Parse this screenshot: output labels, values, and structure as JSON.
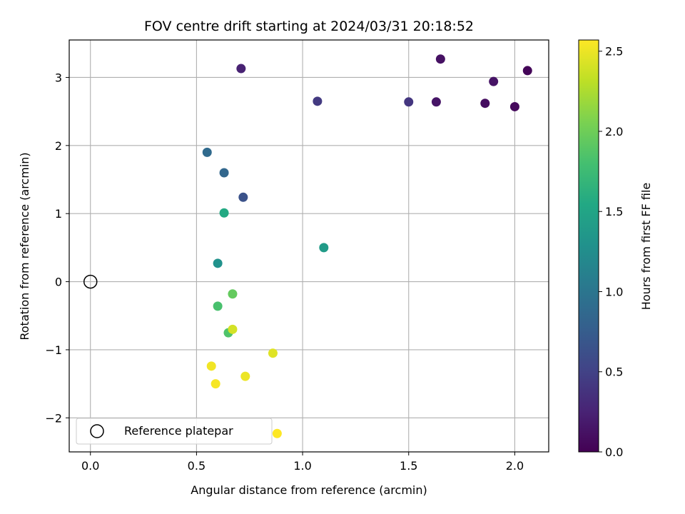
{
  "chart_data": {
    "type": "scatter",
    "title": "FOV centre drift starting at 2024/03/31 20:18:52",
    "xlabel": "Angular distance from reference (arcmin)",
    "ylabel": "Rotation from reference (arcmin)",
    "xlim": [
      -0.1,
      2.16
    ],
    "ylim": [
      -2.5,
      3.55
    ],
    "xticks": [
      0.0,
      0.5,
      1.0,
      1.5,
      2.0
    ],
    "xtick_labels": [
      "0.0",
      "0.5",
      "1.0",
      "1.5",
      "2.0"
    ],
    "yticks": [
      -2,
      -1,
      0,
      1,
      2,
      3
    ],
    "ytick_labels": [
      "−2",
      "−1",
      "0",
      "1",
      "2",
      "3"
    ],
    "grid": true,
    "colormap": "viridis",
    "colorbar": {
      "label": "Hours from first FF file",
      "range": [
        0.0,
        2.57
      ],
      "ticks": [
        0.0,
        0.5,
        1.0,
        1.5,
        2.0,
        2.5
      ],
      "tick_labels": [
        "0.0",
        "0.5",
        "1.0",
        "1.5",
        "2.0",
        "2.5"
      ]
    },
    "legend": {
      "position": "lower-left",
      "entries": [
        {
          "label": "Reference platepar",
          "marker": "open-circle"
        }
      ]
    },
    "reference_point": {
      "x": 0.0,
      "y": 0.0
    },
    "series": [
      {
        "points": [
          {
            "x": 2.06,
            "y": 3.1,
            "c": 0.03
          },
          {
            "x": 2.0,
            "y": 2.57,
            "c": 0.06
          },
          {
            "x": 1.86,
            "y": 2.62,
            "c": 0.09
          },
          {
            "x": 1.65,
            "y": 3.27,
            "c": 0.12
          },
          {
            "x": 1.9,
            "y": 2.94,
            "c": 0.13
          },
          {
            "x": 1.63,
            "y": 2.64,
            "c": 0.14
          },
          {
            "x": 0.71,
            "y": 3.13,
            "c": 0.24
          },
          {
            "x": 1.5,
            "y": 2.64,
            "c": 0.4
          },
          {
            "x": 1.07,
            "y": 2.65,
            "c": 0.43
          },
          {
            "x": 0.72,
            "y": 1.24,
            "c": 0.65
          },
          {
            "x": 0.63,
            "y": 1.6,
            "c": 0.85
          },
          {
            "x": 0.55,
            "y": 1.9,
            "c": 0.88
          },
          {
            "x": 0.6,
            "y": 0.27,
            "c": 1.3
          },
          {
            "x": 1.1,
            "y": 0.5,
            "c": 1.4
          },
          {
            "x": 0.63,
            "y": 1.01,
            "c": 1.55
          },
          {
            "x": 0.6,
            "y": -0.36,
            "c": 1.82
          },
          {
            "x": 0.65,
            "y": -0.75,
            "c": 1.85
          },
          {
            "x": 0.67,
            "y": -0.18,
            "c": 1.95
          },
          {
            "x": 0.67,
            "y": -0.7,
            "c": 2.4
          },
          {
            "x": 0.86,
            "y": -1.05,
            "c": 2.45
          },
          {
            "x": 0.73,
            "y": -1.39,
            "c": 2.5
          },
          {
            "x": 0.57,
            "y": -1.24,
            "c": 2.52
          },
          {
            "x": 0.59,
            "y": -1.5,
            "c": 2.54
          },
          {
            "x": 0.88,
            "y": -2.23,
            "c": 2.57
          }
        ]
      }
    ]
  }
}
